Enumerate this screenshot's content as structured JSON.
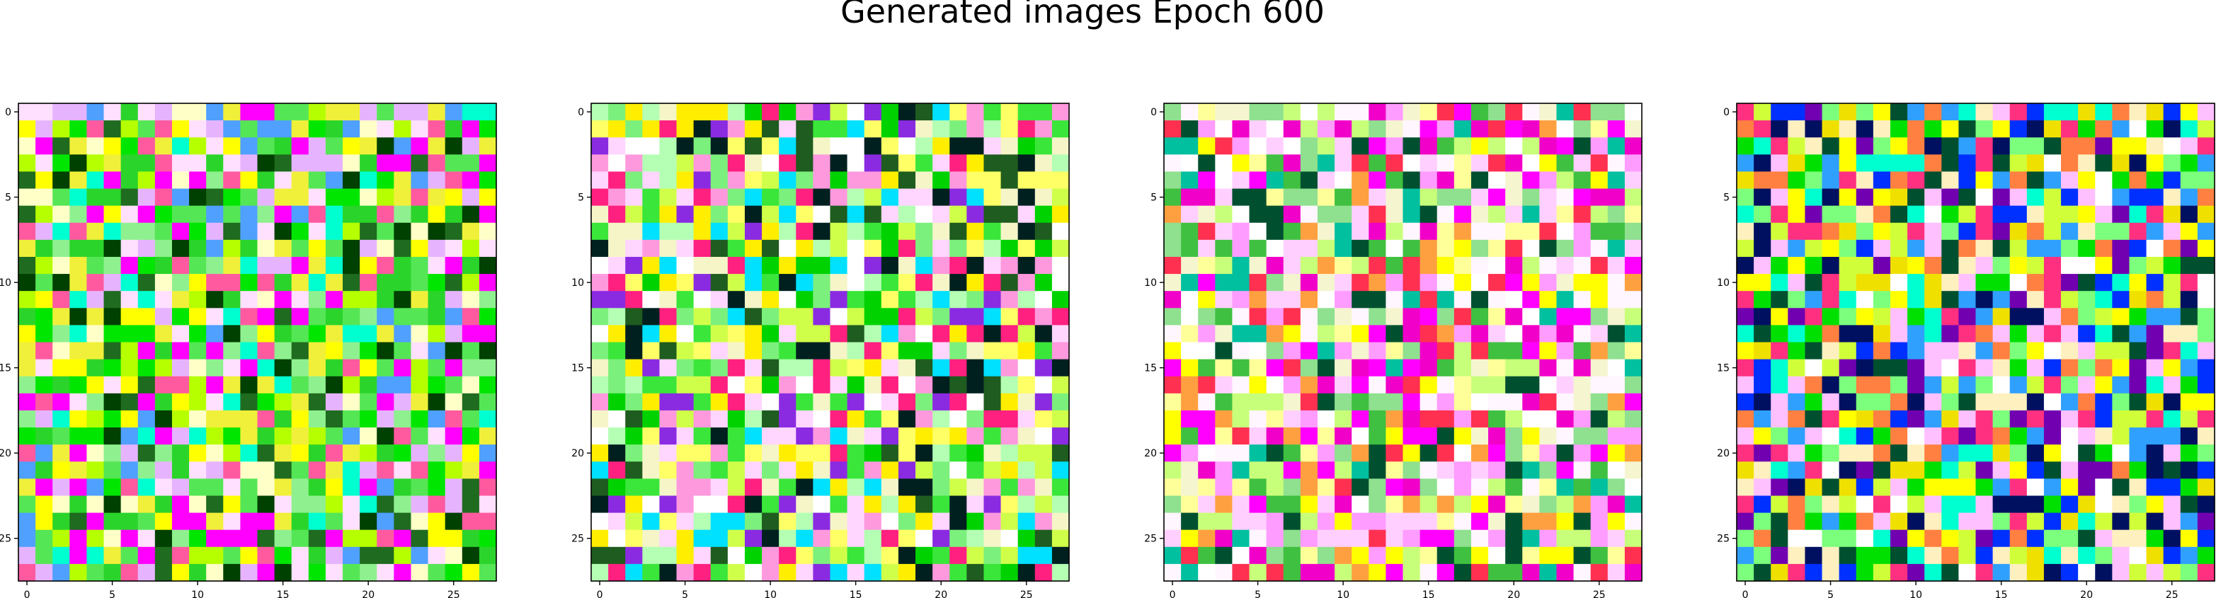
{
  "figure": {
    "title": "Generated images Epoch 600"
  },
  "chart_data": {
    "type": "heatmap",
    "title": "Generated images Epoch 600",
    "description_of_content": "",
    "panel_count": 4,
    "image_shape": [
      28,
      28,
      3
    ],
    "xlim": [
      -0.5,
      27.5
    ],
    "ylim": [
      27.5,
      -0.5
    ],
    "xticks": [
      0,
      5,
      10,
      15,
      20,
      25
    ],
    "yticks": [
      0,
      5,
      10,
      15,
      20,
      25
    ],
    "xtick_labels": [
      "0",
      "5",
      "10",
      "15",
      "20",
      "25"
    ],
    "ytick_labels": [
      "0",
      "5",
      "10",
      "15",
      "20",
      "25"
    ],
    "palettes": [
      [
        "#00e600",
        "#2bd42b",
        "#55e655",
        "#8ff08f",
        "#b6ff00",
        "#ffff00",
        "#f0f03a",
        "#ffffc8",
        "#ffe0ff",
        "#e6b4ff",
        "#ff00ff",
        "#ff5aa0",
        "#00ffd0",
        "#4fa0ff",
        "#004000",
        "#1f6b1f"
      ],
      [
        "#00d200",
        "#3ae63a",
        "#7cf07c",
        "#b4ffb4",
        "#ffff66",
        "#ffee00",
        "#f5f5c8",
        "#ffffff",
        "#ffd6ff",
        "#ff99dd",
        "#ff2080",
        "#8a2be2",
        "#00e0ff",
        "#1f5c1f",
        "#002020",
        "#d0ff4a"
      ],
      [
        "#ffffff",
        "#fff6ff",
        "#ffd0ff",
        "#ff9cff",
        "#ff00ff",
        "#f000c8",
        "#ffff00",
        "#ffff9a",
        "#f5f5d0",
        "#c8ff7a",
        "#8fe08f",
        "#40c040",
        "#ff3050",
        "#ffa040",
        "#00c0a0",
        "#005030"
      ],
      [
        "#ffffff",
        "#fff0c0",
        "#ffff00",
        "#f0e000",
        "#d0ff3a",
        "#7cff7c",
        "#00e000",
        "#00ffd0",
        "#30a0ff",
        "#0030ff",
        "#7000b0",
        "#ff3080",
        "#ffc0ff",
        "#ff8040",
        "#005030",
        "#001060"
      ]
    ],
    "seeds": [
      11,
      29,
      47,
      83
    ]
  }
}
